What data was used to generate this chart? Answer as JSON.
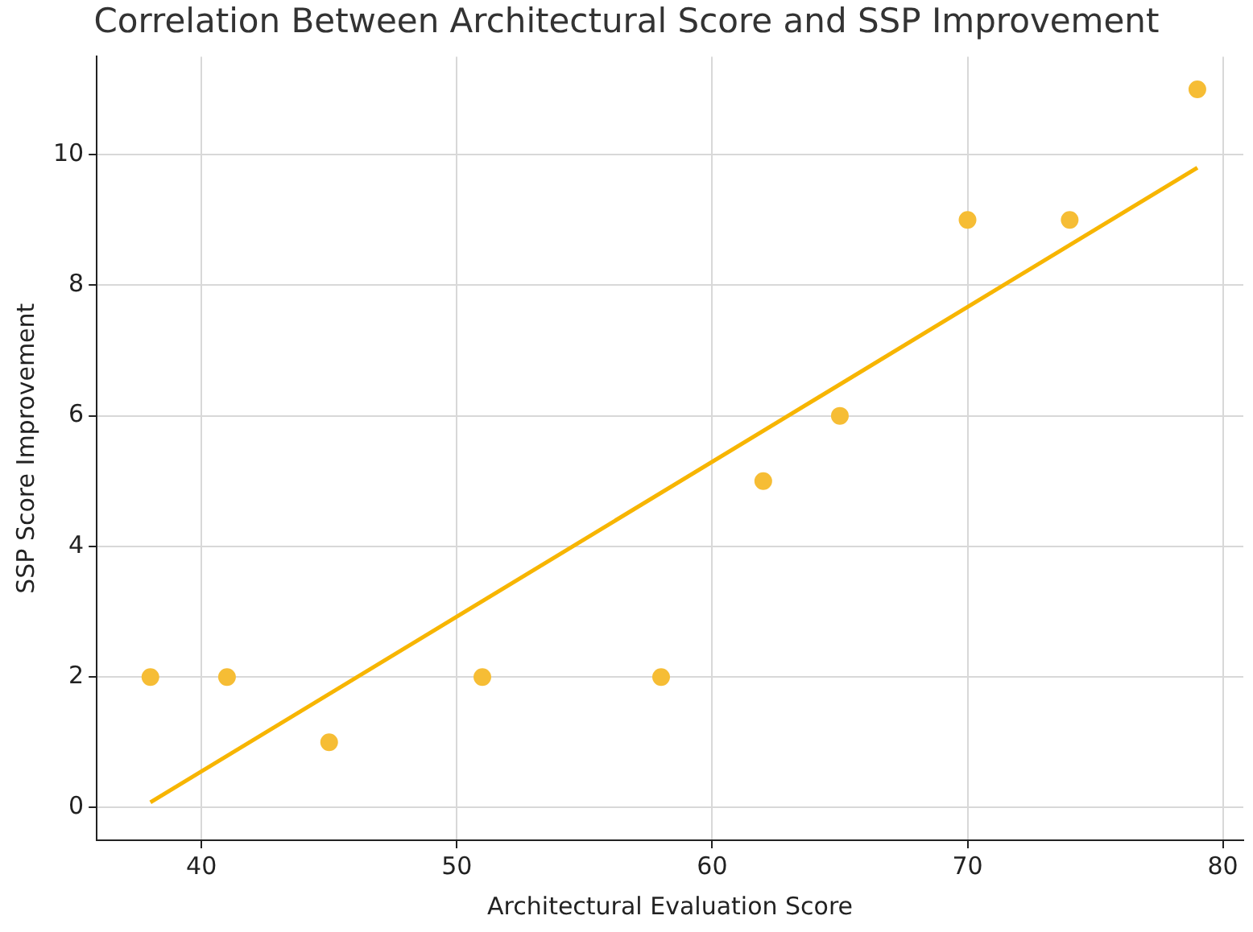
{
  "chart_data": {
    "type": "scatter",
    "title": "Correlation Between Architectural Score and SSP Improvement",
    "xlabel": "Architectural Evaluation Score",
    "ylabel": "SSP Score Improvement",
    "series": [
      {
        "color": "#f6bd35",
        "marker": "circle",
        "x": [
          38,
          41,
          45,
          51,
          58,
          62,
          65,
          70,
          74,
          79
        ],
        "values": [
          2,
          2,
          1,
          2,
          2,
          5,
          6,
          9,
          9,
          11
        ]
      },
      {
        "type": "line",
        "color": "#f7b500",
        "marker": "none",
        "x": [
          38,
          79
        ],
        "values": [
          0.08,
          9.8
        ]
      }
    ],
    "xlim": [
      35.9,
      80.8
    ],
    "ylim": [
      -0.5,
      11.5
    ],
    "xticks": [
      40,
      50,
      60,
      70,
      80
    ],
    "yticks": [
      0,
      2,
      4,
      6,
      8,
      10
    ],
    "grid": true,
    "legend": false
  }
}
